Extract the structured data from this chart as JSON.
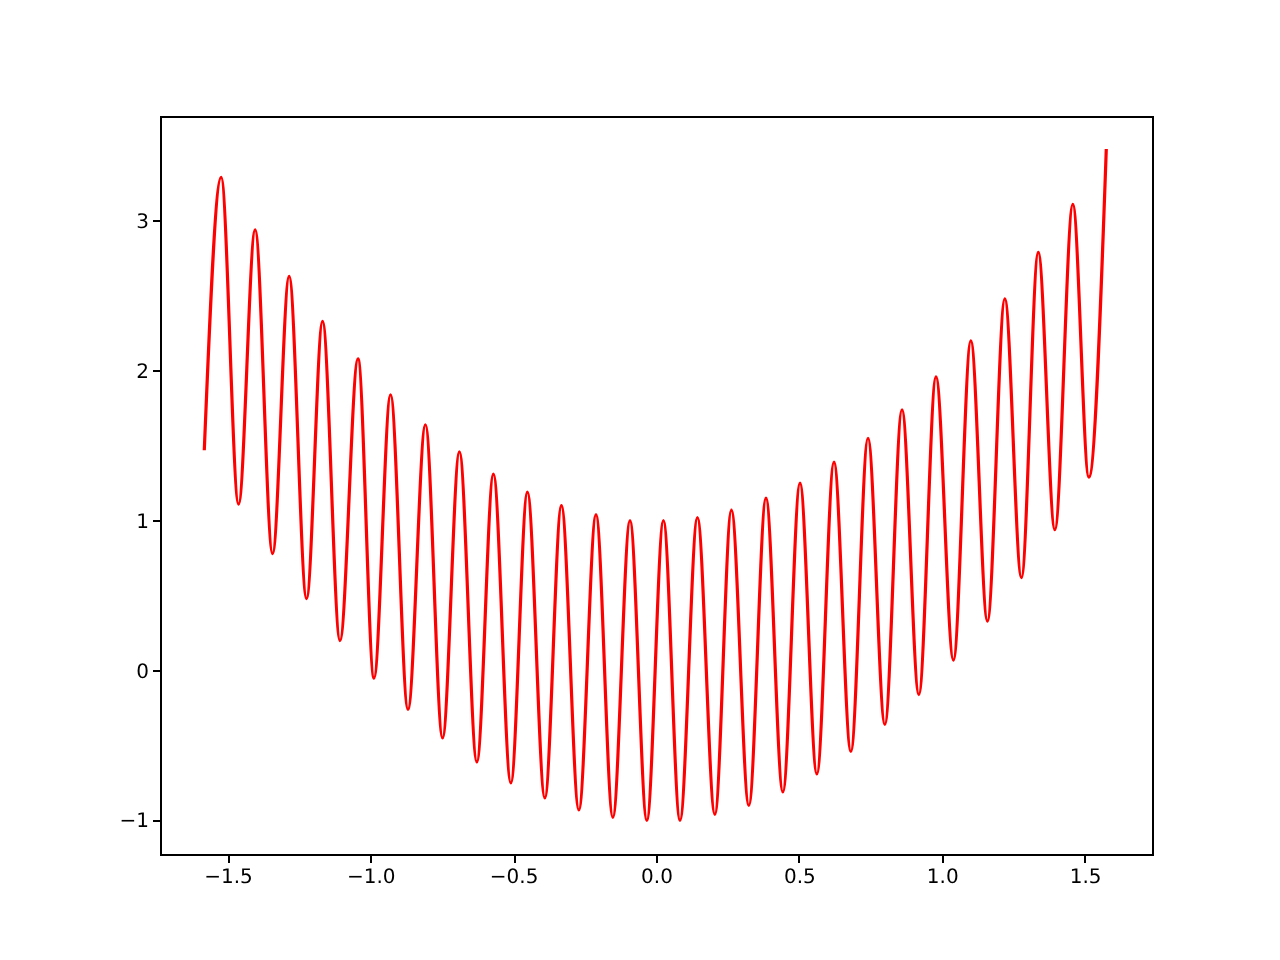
{
  "chart_data": {
    "type": "line",
    "x": [
      -1.581,
      -1.522,
      -1.461,
      -1.403,
      -1.342,
      -1.284,
      -1.223,
      -1.167,
      -1.106,
      -1.043,
      -0.987,
      -0.929,
      -0.868,
      -0.807,
      -0.747,
      -0.688,
      -0.627,
      -0.569,
      -0.508,
      -0.45,
      -0.389,
      -0.331,
      -0.27,
      -0.21,
      -0.151,
      -0.091,
      -0.032,
      0.026,
      0.084,
      0.145,
      0.206,
      0.264,
      0.325,
      0.385,
      0.444,
      0.504,
      0.563,
      0.623,
      0.682,
      0.742,
      0.801,
      0.861,
      0.92,
      0.98,
      1.041,
      1.102,
      1.16,
      1.221,
      1.279,
      1.338,
      1.396,
      1.459,
      1.515,
      1.576
    ],
    "series": [
      {
        "color": "#ff0000",
        "values": [
          1.47,
          3.29,
          1.11,
          2.94,
          0.78,
          2.63,
          0.48,
          2.33,
          0.2,
          2.08,
          -0.05,
          1.84,
          -0.26,
          1.64,
          -0.45,
          1.46,
          -0.61,
          1.31,
          -0.75,
          1.19,
          -0.85,
          1.1,
          -0.93,
          1.04,
          -0.98,
          1.0,
          -1.0,
          1.0,
          -1.0,
          1.02,
          -0.96,
          1.07,
          -0.9,
          1.15,
          -0.81,
          1.25,
          -0.69,
          1.39,
          -0.54,
          1.55,
          -0.36,
          1.74,
          -0.16,
          1.96,
          0.07,
          2.2,
          0.33,
          2.48,
          0.62,
          2.79,
          0.94,
          3.11,
          1.29,
          3.48
        ]
      }
    ],
    "xlim": [
      -1.736,
      1.736
    ],
    "ylim": [
      -1.224,
      3.7
    ],
    "xticks": [
      {
        "value": -1.5,
        "label": "−1.5"
      },
      {
        "value": -1.0,
        "label": "−1.0"
      },
      {
        "value": -0.5,
        "label": "−0.5"
      },
      {
        "value": 0.0,
        "label": "0.0"
      },
      {
        "value": 0.5,
        "label": "0.5"
      },
      {
        "value": 1.0,
        "label": "1.0"
      },
      {
        "value": 1.5,
        "label": "1.5"
      }
    ],
    "yticks": [
      {
        "value": -1,
        "label": "−1"
      },
      0,
      1,
      2,
      3
    ],
    "grid": false,
    "line_style": "solid"
  }
}
